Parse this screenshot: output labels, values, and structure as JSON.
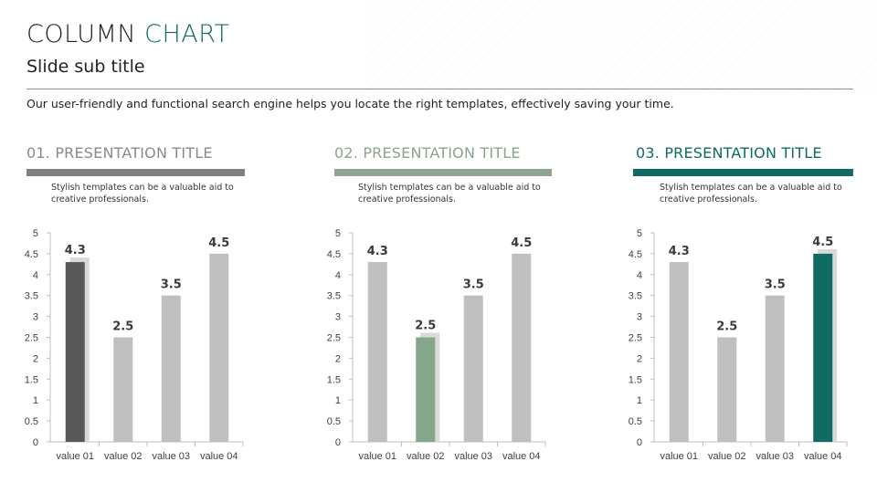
{
  "slide": {
    "title_part1": "COLUMN ",
    "title_part2": "CHART",
    "subtitle": "Slide sub title",
    "description": "Our user-friendly and functional search engine helps you locate the right templates, effectively saving your time."
  },
  "colors": {
    "accent_teal": "#0f6b63",
    "bar_default": "#bfbfbf",
    "bar_shadow": "#d9d9d9"
  },
  "panels": [
    {
      "title": "01. PRESENTATION TITLE",
      "title_color": "#8a8a8a",
      "bar_color": "#808080",
      "text": "Stylish templates can be a valuable aid to creative professionals.",
      "highlight_index": 0,
      "highlight_color": "#595959"
    },
    {
      "title": "02. PRESENTATION TITLE",
      "title_color": "#8aa58f",
      "bar_color": "#8ea690",
      "text": "Stylish templates can be a valuable aid to creative professionals.",
      "highlight_index": 1,
      "highlight_color": "#84a68a"
    },
    {
      "title": "03. PRESENTATION TITLE",
      "title_color": "#0f6b63",
      "bar_color": "#0f6b63",
      "text": "Stylish templates can be a valuable aid to creative professionals.",
      "highlight_index": 3,
      "highlight_color": "#0f6b63"
    }
  ],
  "chart_data": [
    {
      "type": "bar",
      "categories": [
        "value 01",
        "value 02",
        "value 03",
        "value 04"
      ],
      "values": [
        4.3,
        2.5,
        3.5,
        4.5
      ],
      "data_labels": [
        "4.3",
        "2.5",
        "3.5",
        "4.5"
      ],
      "ylim": [
        0,
        5
      ],
      "yticks": [
        "0",
        "0.5",
        "1",
        "1.5",
        "2",
        "2.5",
        "3",
        "3.5",
        "4",
        "4.5",
        "5"
      ],
      "grid": false,
      "legend": "none"
    },
    {
      "type": "bar",
      "categories": [
        "value 01",
        "value 02",
        "value 03",
        "value 04"
      ],
      "values": [
        4.3,
        2.5,
        3.5,
        4.5
      ],
      "data_labels": [
        "4.3",
        "2.5",
        "3.5",
        "4.5"
      ],
      "ylim": [
        0,
        5
      ],
      "yticks": [
        "0",
        "0.5",
        "1",
        "1.5",
        "2",
        "2.5",
        "3",
        "3.5",
        "4",
        "4.5",
        "5"
      ],
      "grid": false,
      "legend": "none"
    },
    {
      "type": "bar",
      "categories": [
        "value 01",
        "value 02",
        "value 03",
        "value 04"
      ],
      "values": [
        4.3,
        2.5,
        3.5,
        4.5
      ],
      "data_labels": [
        "4.3",
        "2.5",
        "3.5",
        "4.5"
      ],
      "ylim": [
        0,
        5
      ],
      "yticks": [
        "0",
        "0.5",
        "1",
        "1.5",
        "2",
        "2.5",
        "3",
        "3.5",
        "4",
        "4.5",
        "5"
      ],
      "grid": false,
      "legend": "none"
    }
  ]
}
